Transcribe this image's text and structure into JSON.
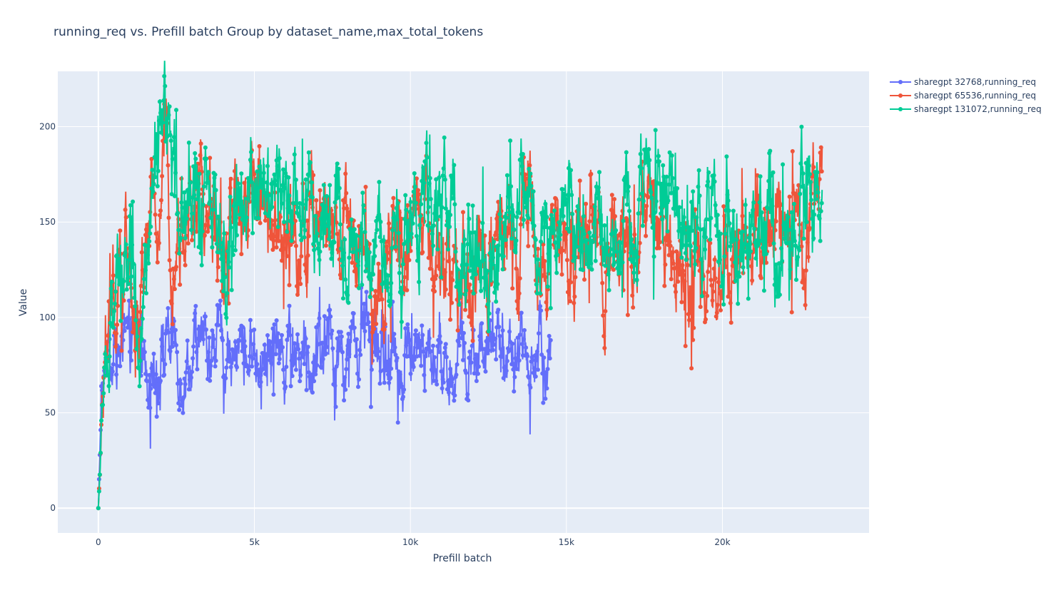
{
  "chart_data": {
    "type": "scatter",
    "mode": "lines+markers",
    "title": "running_req vs. Prefill batch Group by dataset_name,max_total_tokens",
    "xlabel": "Prefill batch",
    "ylabel": "Value",
    "xlim": [
      -1300,
      24700
    ],
    "ylim": [
      -13,
      229
    ],
    "x_ticks": [
      0,
      5000,
      10000,
      15000,
      20000
    ],
    "x_tick_labels": [
      "0",
      "5k",
      "10k",
      "15k",
      "20k"
    ],
    "y_ticks": [
      0,
      50,
      100,
      150,
      200
    ],
    "y_tick_labels": [
      "0",
      "50",
      "100",
      "150",
      "200"
    ],
    "grid": true,
    "legend_position": "top-right",
    "plot_background": "#e5ecf6",
    "series": [
      {
        "name": "sharegpt 32768,running_req",
        "color": "#636efa",
        "x_max": 14500,
        "points": [
          [
            0,
            0
          ],
          [
            100,
            60
          ],
          [
            300,
            78
          ],
          [
            500,
            85
          ],
          [
            800,
            80
          ],
          [
            1000,
            72
          ],
          [
            1200,
            88
          ],
          [
            1600,
            82
          ],
          [
            2000,
            84
          ],
          [
            2500,
            78
          ],
          [
            3000,
            82
          ],
          [
            3500,
            80
          ],
          [
            4000,
            82
          ],
          [
            4500,
            79
          ],
          [
            5000,
            82
          ],
          [
            5500,
            80
          ],
          [
            6000,
            83
          ],
          [
            6500,
            84
          ],
          [
            7000,
            81
          ],
          [
            7500,
            82
          ],
          [
            8000,
            80
          ],
          [
            8500,
            79
          ],
          [
            9000,
            77
          ],
          [
            9500,
            80
          ],
          [
            10000,
            82
          ],
          [
            10500,
            80
          ],
          [
            11000,
            79
          ],
          [
            11500,
            80
          ],
          [
            12000,
            81
          ],
          [
            12500,
            80
          ],
          [
            13000,
            82
          ],
          [
            13500,
            81
          ],
          [
            14000,
            80
          ],
          [
            14500,
            80
          ]
        ]
      },
      {
        "name": "sharegpt 65536,running_req",
        "color": "#ef553b",
        "x_max": 23200,
        "points": [
          [
            0,
            0
          ],
          [
            200,
            75
          ],
          [
            500,
            105
          ],
          [
            800,
            125
          ],
          [
            1000,
            118
          ],
          [
            1200,
            80
          ],
          [
            1500,
            120
          ],
          [
            2000,
            170
          ],
          [
            2500,
            150
          ],
          [
            3000,
            150
          ],
          [
            3500,
            158
          ],
          [
            4000,
            140
          ],
          [
            4500,
            145
          ],
          [
            5000,
            165
          ],
          [
            5500,
            162
          ],
          [
            6000,
            150
          ],
          [
            6500,
            142
          ],
          [
            7000,
            145
          ],
          [
            7500,
            130
          ],
          [
            8000,
            145
          ],
          [
            8500,
            120
          ],
          [
            9000,
            110
          ],
          [
            9500,
            150
          ],
          [
            10000,
            148
          ],
          [
            10500,
            140
          ],
          [
            11000,
            130
          ],
          [
            11500,
            100
          ],
          [
            12000,
            115
          ],
          [
            12500,
            130
          ],
          [
            13000,
            150
          ],
          [
            13500,
            160
          ],
          [
            14000,
            142
          ],
          [
            14500,
            130
          ],
          [
            15000,
            135
          ],
          [
            15500,
            125
          ],
          [
            16000,
            130
          ],
          [
            16500,
            140
          ],
          [
            17000,
            138
          ],
          [
            17500,
            150
          ],
          [
            18000,
            145
          ],
          [
            18500,
            140
          ],
          [
            19000,
            125
          ],
          [
            19500,
            110
          ],
          [
            20000,
            120
          ],
          [
            20500,
            140
          ],
          [
            21000,
            135
          ],
          [
            21500,
            140
          ],
          [
            22000,
            165
          ],
          [
            22500,
            150
          ],
          [
            23000,
            160
          ],
          [
            23200,
            165
          ]
        ]
      },
      {
        "name": "sharegpt 131072,running_req",
        "color": "#00cc96",
        "x_max": 23200,
        "points": [
          [
            0,
            0
          ],
          [
            200,
            80
          ],
          [
            500,
            100
          ],
          [
            800,
            120
          ],
          [
            1000,
            135
          ],
          [
            1200,
            95
          ],
          [
            1500,
            115
          ],
          [
            2000,
            195
          ],
          [
            2500,
            160
          ],
          [
            3000,
            160
          ],
          [
            3500,
            150
          ],
          [
            4000,
            140
          ],
          [
            4500,
            150
          ],
          [
            5000,
            165
          ],
          [
            5200,
            190
          ],
          [
            5500,
            172
          ],
          [
            6000,
            165
          ],
          [
            6500,
            162
          ],
          [
            7000,
            158
          ],
          [
            7500,
            150
          ],
          [
            8000,
            145
          ],
          [
            8500,
            150
          ],
          [
            9000,
            140
          ],
          [
            9500,
            135
          ],
          [
            10000,
            150
          ],
          [
            10500,
            145
          ],
          [
            11000,
            155
          ],
          [
            11500,
            140
          ],
          [
            12000,
            125
          ],
          [
            12500,
            115
          ],
          [
            13000,
            145
          ],
          [
            13500,
            170
          ],
          [
            14000,
            150
          ],
          [
            14500,
            155
          ],
          [
            15000,
            150
          ],
          [
            15500,
            148
          ],
          [
            16000,
            140
          ],
          [
            16500,
            135
          ],
          [
            17000,
            145
          ],
          [
            17500,
            165
          ],
          [
            18000,
            170
          ],
          [
            18500,
            150
          ],
          [
            19000,
            145
          ],
          [
            19500,
            135
          ],
          [
            20000,
            140
          ],
          [
            20500,
            130
          ],
          [
            21000,
            135
          ],
          [
            21500,
            140
          ],
          [
            22000,
            130
          ],
          [
            22500,
            150
          ],
          [
            23000,
            170
          ],
          [
            23200,
            162
          ]
        ]
      }
    ]
  }
}
